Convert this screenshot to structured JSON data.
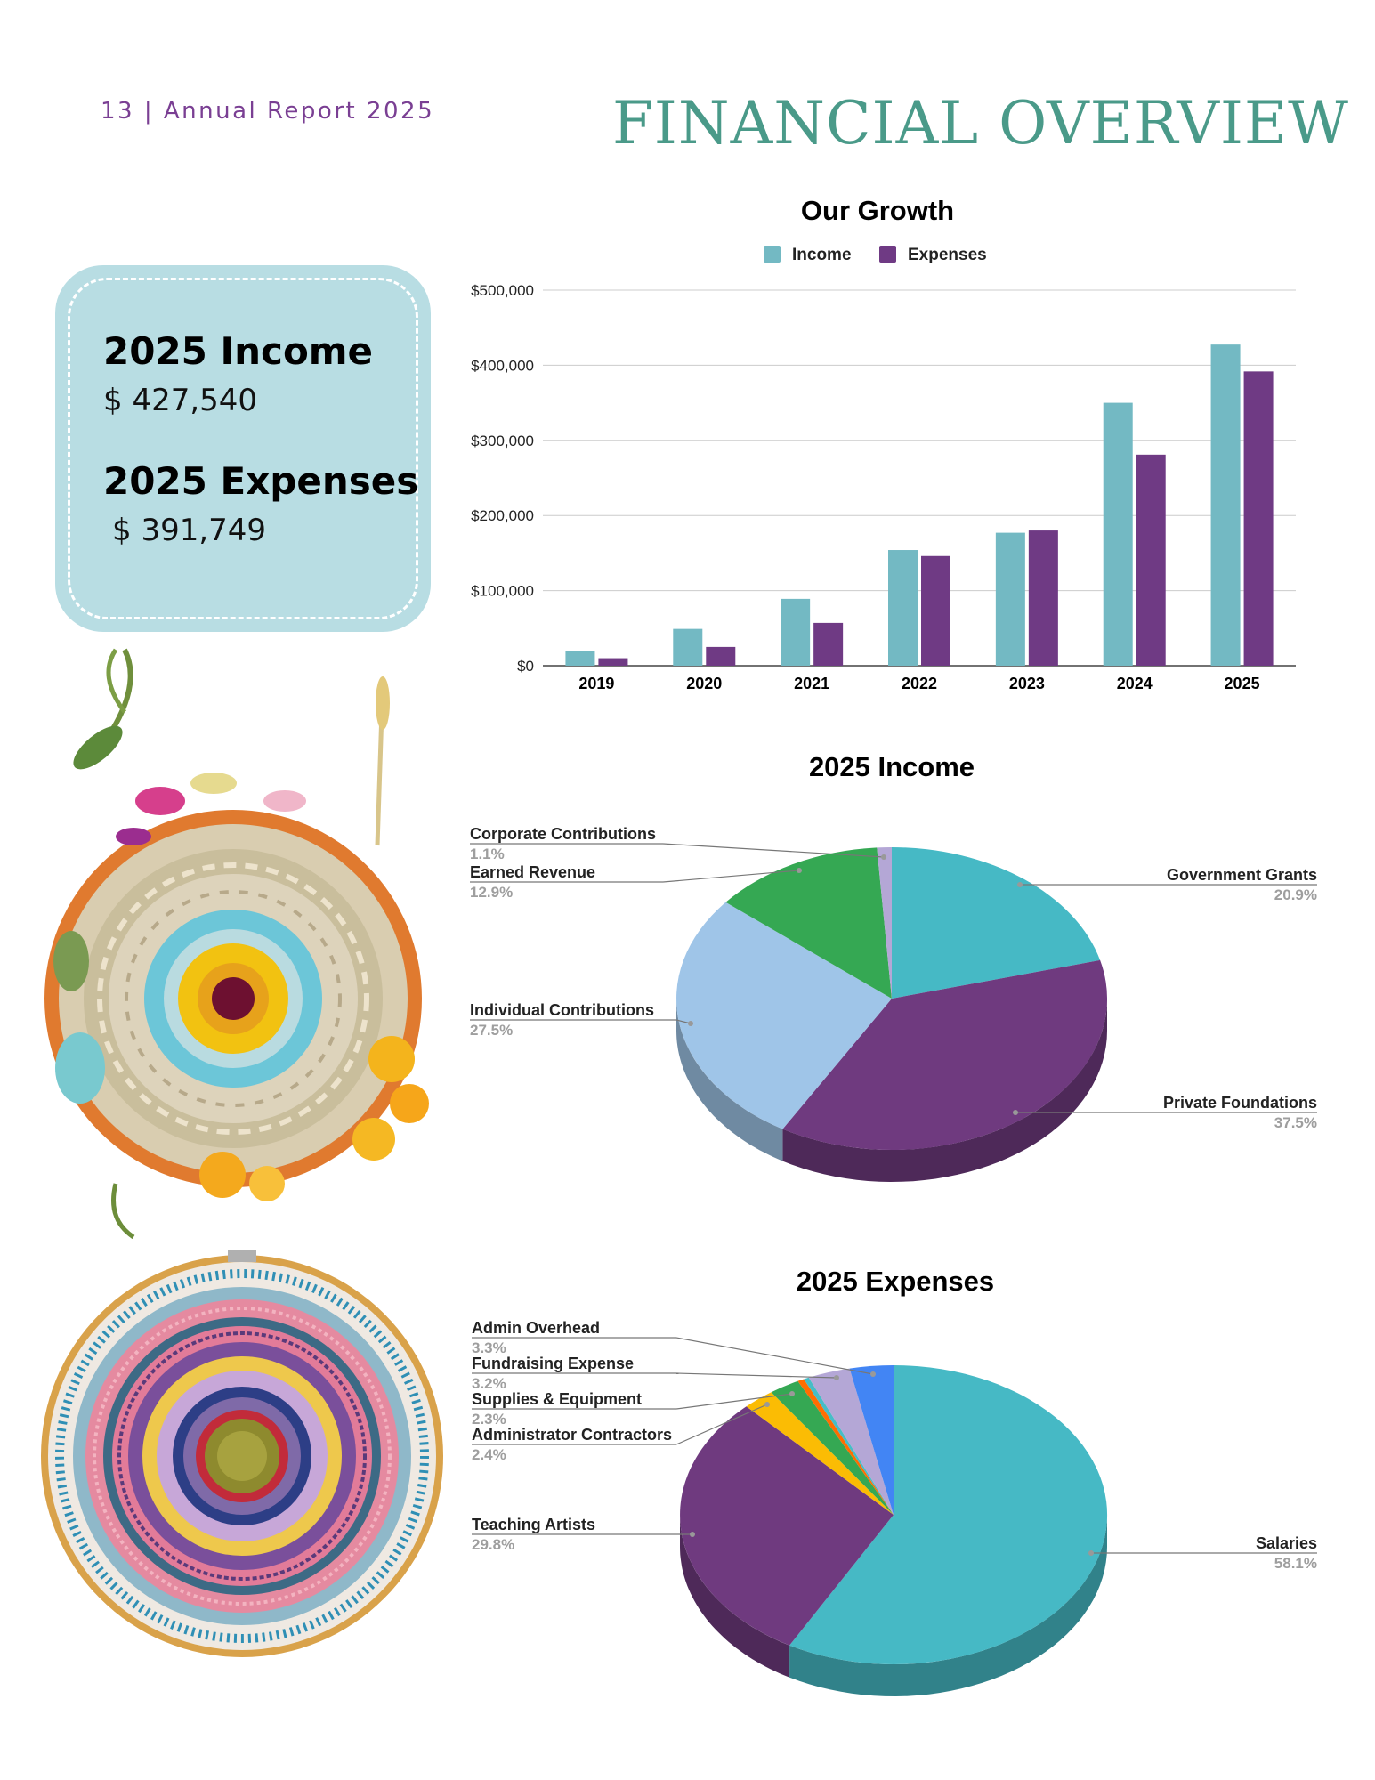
{
  "header": {
    "page_label": "13 | Annual Report 2025",
    "title": "FINANCIAL OVERVIEW"
  },
  "summary": {
    "income_heading": "2025 Income",
    "income_value": "$ 427,540",
    "expenses_heading": "2025 Expenses",
    "expenses_value": "$ 391,749"
  },
  "images": {
    "weaving_top": "weaving-with-flowers-image",
    "weaving_bottom": "embroidery-hoop-weaving-image"
  },
  "colors": {
    "title": "#4a9a89",
    "page_label": "#7a3f93",
    "card": "#b8dde3",
    "income_bar": "#73b9c3",
    "expense_bar": "#6f3a84"
  },
  "chart_data": [
    {
      "type": "bar",
      "title": "Our Growth",
      "categories": [
        "2019",
        "2020",
        "2021",
        "2022",
        "2023",
        "2024",
        "2025"
      ],
      "series": [
        {
          "name": "Income",
          "color": "#73b9c3",
          "values": [
            20000,
            49000,
            89000,
            154000,
            177000,
            350000,
            427540
          ]
        },
        {
          "name": "Expenses",
          "color": "#6f3a84",
          "values": [
            10000,
            25000,
            57000,
            146000,
            180000,
            281000,
            391749
          ]
        }
      ],
      "yticks": [
        "$0",
        "$100,000",
        "$200,000",
        "$300,000",
        "$400,000",
        "$500,000"
      ],
      "ylim": [
        0,
        500000
      ],
      "legend": "top",
      "grid": true
    },
    {
      "type": "pie",
      "title": "2025 Income",
      "slices": [
        {
          "label": "Government Grants",
          "pct": "20.9%",
          "value": 20.9,
          "color": "#46b9c5"
        },
        {
          "label": "Private Foundations",
          "pct": "37.5%",
          "value": 37.5,
          "color": "#6f3a7f"
        },
        {
          "label": "Individual Contributions",
          "pct": "27.5%",
          "value": 27.5,
          "color": "#9fc5e8"
        },
        {
          "label": "Earned Revenue",
          "pct": "12.9%",
          "value": 12.9,
          "color": "#35a853"
        },
        {
          "label": "Corporate Contributions",
          "pct": "1.1%",
          "value": 1.1,
          "color": "#b4a7d6"
        }
      ]
    },
    {
      "type": "pie",
      "title": "2025 Expenses",
      "slices": [
        {
          "label": "Salaries",
          "pct": "58.1%",
          "value": 58.1,
          "color": "#46b9c5"
        },
        {
          "label": "Teaching Artists",
          "pct": "29.8%",
          "value": 29.8,
          "color": "#6f3a7f"
        },
        {
          "label": "Administrator Contractors",
          "pct": "2.4%",
          "value": 2.4,
          "color": "#fbbc04"
        },
        {
          "label": "Supplies & Equipment",
          "pct": "2.3%",
          "value": 2.3,
          "color": "#35a853"
        },
        {
          "label": "",
          "pct": "",
          "value": 0.5,
          "color": "#ff6d01"
        },
        {
          "label": "",
          "pct": "",
          "value": 0.4,
          "color": "#46bdc6"
        },
        {
          "label": "Fundraising Expense",
          "pct": "3.2%",
          "value": 3.2,
          "color": "#b4a7d6"
        },
        {
          "label": "Admin Overhead",
          "pct": "3.3%",
          "value": 3.3,
          "color": "#4285f4"
        }
      ]
    }
  ]
}
